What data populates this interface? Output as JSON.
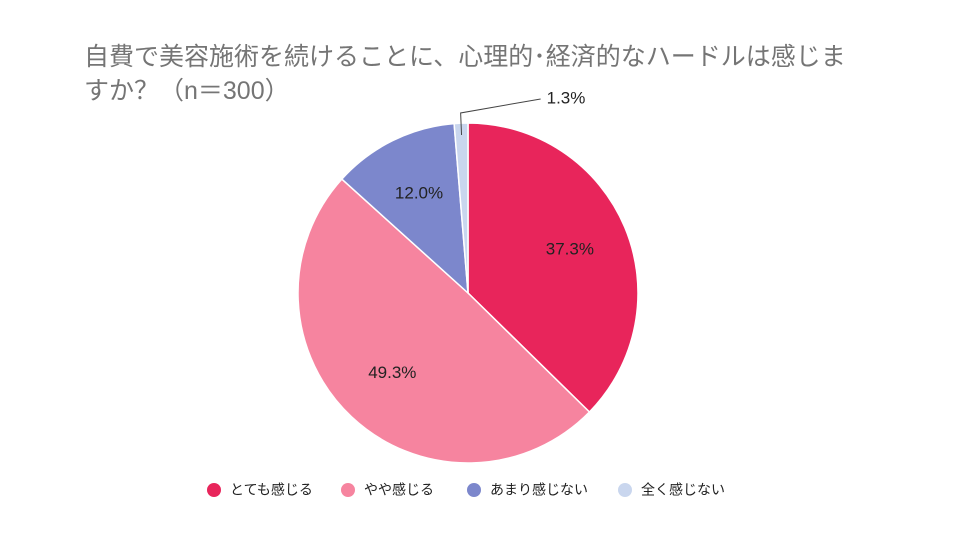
{
  "chart_data": {
    "type": "pie",
    "title": "自費で美容施術を続けることに、心理的･経済的なハードルは感じますか？（n＝300）",
    "categories": [
      "とても感じる",
      "やや感じる",
      "あまり感じない",
      "全く感じない"
    ],
    "values": [
      37.3,
      49.3,
      12.0,
      1.3
    ],
    "value_labels": [
      "37.3%",
      "49.3%",
      "12.0%",
      "1.3%"
    ],
    "colors": [
      "#e8255b",
      "#f6849f",
      "#7c87cc",
      "#c9d6ee"
    ],
    "legend": "bottom"
  }
}
